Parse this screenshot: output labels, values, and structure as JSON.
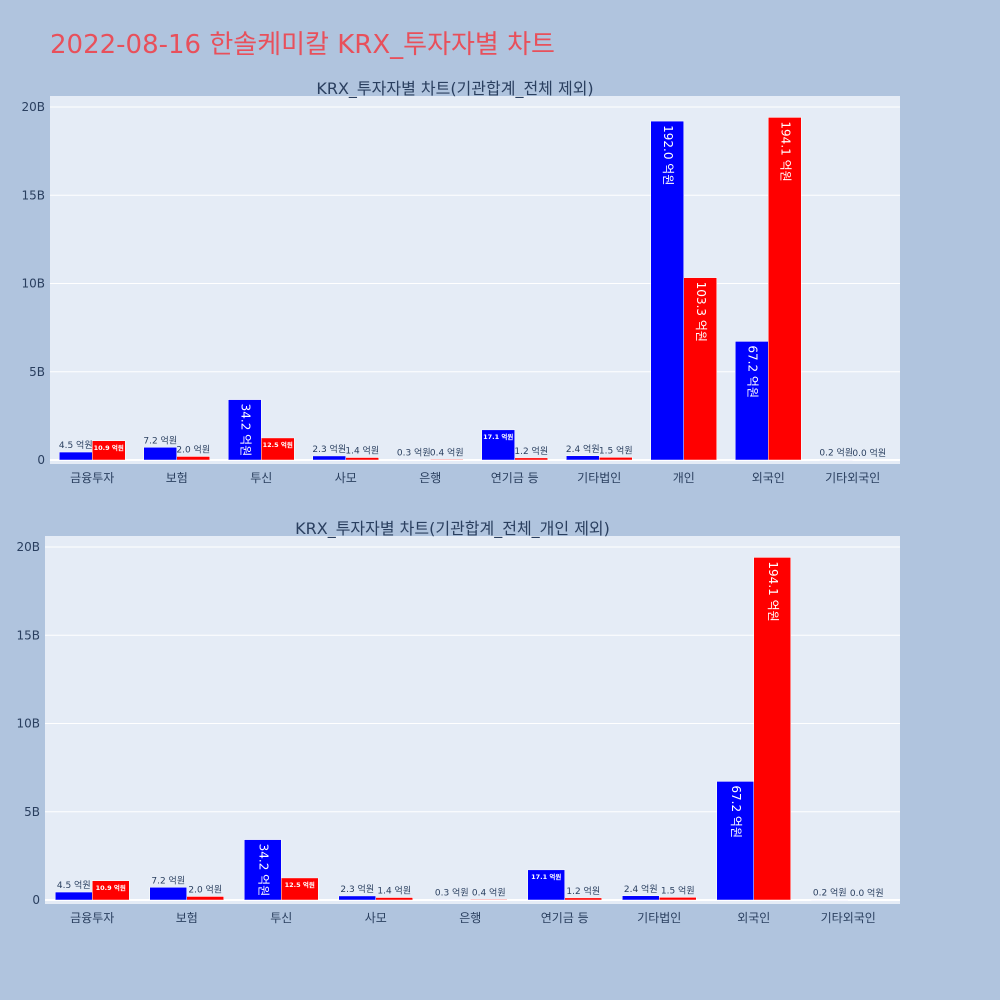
{
  "page": {
    "title": "2022-08-16 한솔케미칼 KRX_투자자별 차트"
  },
  "colors": {
    "background": "#b0c4de",
    "plot_bg": "#e5ecf6",
    "buy": "#0000ff",
    "sell": "#ff0000",
    "title": "#e8505b"
  },
  "chart_data": [
    {
      "type": "bar",
      "title": "KRX_투자자별 차트(기관합계_전체 제외)",
      "categories": [
        "금융투자",
        "보험",
        "투신",
        "사모",
        "은행",
        "연기금 등",
        "기타법인",
        "개인",
        "외국인",
        "기타외국인"
      ],
      "yticks": [
        "0",
        "5B",
        "10B",
        "15B",
        "20B"
      ],
      "ylim": [
        0,
        20.8
      ],
      "series": [
        {
          "color": "#0000ff",
          "values": [
            0.45,
            0.72,
            3.42,
            0.23,
            0.03,
            1.71,
            0.24,
            19.2,
            6.72,
            0.02
          ],
          "labels": [
            "4.5 억원",
            "7.2 억원",
            "34.2 억원",
            "2.3 억원",
            "0.3 억원",
            "17.1 억원",
            "2.4 억원",
            "192.0 억원",
            "67.2 억원",
            "0.2 억원"
          ]
        },
        {
          "color": "#ff0000",
          "values": [
            1.09,
            0.2,
            1.25,
            0.14,
            0.04,
            0.12,
            0.15,
            10.33,
            19.41,
            0.0
          ],
          "labels": [
            "10.9 억원",
            "2.0 억원",
            "12.5 억원",
            "1.4 억원",
            "0.4 억원",
            "1.2 억원",
            "1.5 억원",
            "103.3 억원",
            "194.1 억원",
            "0.0 억원"
          ]
        }
      ]
    },
    {
      "type": "bar",
      "title": "KRX_투자자별 차트(기관합계_전체_개인 제외)",
      "categories": [
        "금융투자",
        "보험",
        "투신",
        "사모",
        "은행",
        "연기금 등",
        "기타법인",
        "외국인",
        "기타외국인"
      ],
      "yticks": [
        "0",
        "5B",
        "10B",
        "15B",
        "20B"
      ],
      "ylim": [
        0,
        20.8
      ],
      "series": [
        {
          "color": "#0000ff",
          "values": [
            0.45,
            0.72,
            3.42,
            0.23,
            0.03,
            1.71,
            0.24,
            6.72,
            0.02
          ],
          "labels": [
            "4.5 억원",
            "7.2 억원",
            "34.2 억원",
            "2.3 억원",
            "0.3 억원",
            "17.1 억원",
            "2.4 억원",
            "67.2 억원",
            "0.2 억원"
          ]
        },
        {
          "color": "#ff0000",
          "values": [
            1.09,
            0.2,
            1.25,
            0.14,
            0.04,
            0.12,
            0.15,
            19.41,
            0.0
          ],
          "labels": [
            "10.9 억원",
            "2.0 억원",
            "12.5 억원",
            "1.4 억원",
            "0.4 억원",
            "1.2 억원",
            "1.5 억원",
            "194.1 억원",
            "0.0 억원"
          ]
        }
      ]
    }
  ]
}
